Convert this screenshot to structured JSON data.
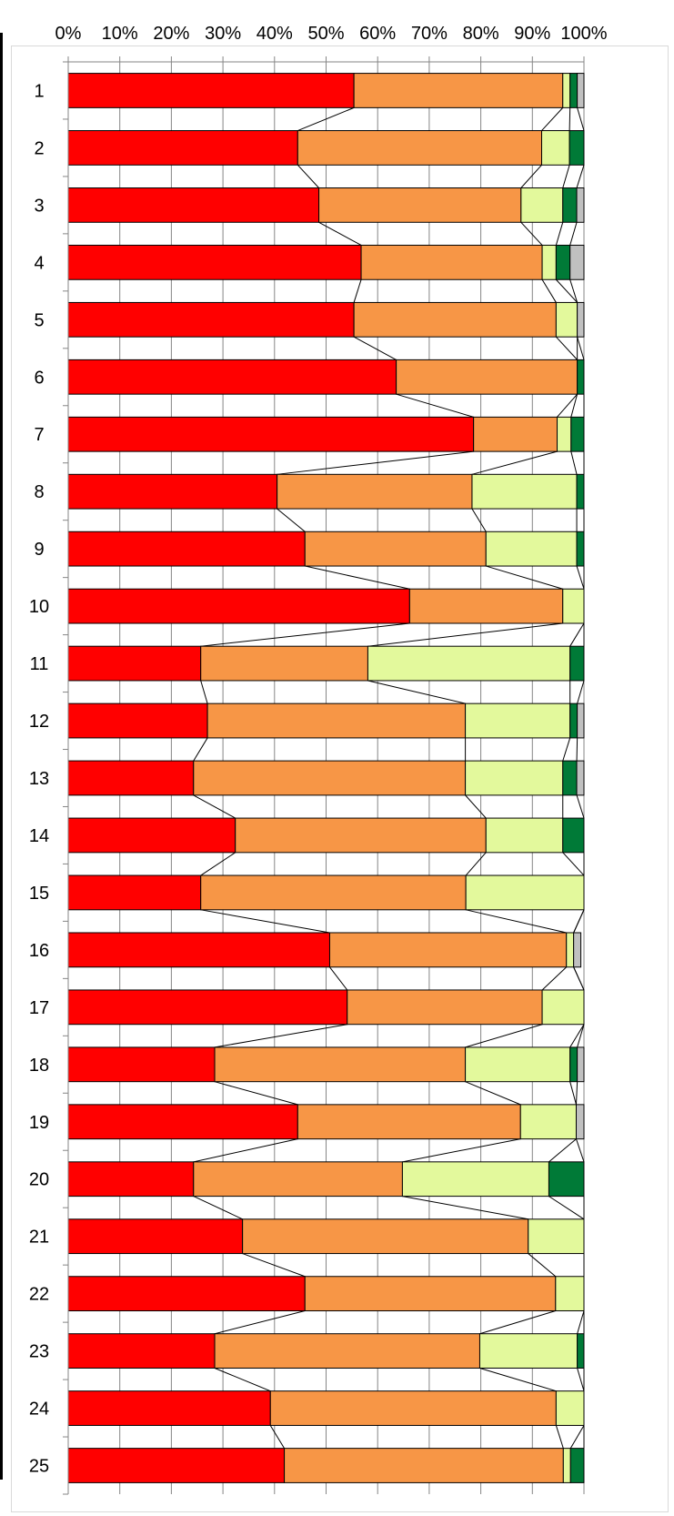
{
  "chart_data": {
    "type": "bar",
    "orientation": "horizontal",
    "stacked": "percent",
    "series_lines": true,
    "grid": true,
    "x_tick_labels": [
      "0%",
      "10%",
      "20%",
      "30%",
      "40%",
      "50%",
      "60%",
      "70%",
      "80%",
      "90%",
      "100%"
    ],
    "xlim": [
      0,
      100
    ],
    "categories": [
      "1",
      "2",
      "3",
      "4",
      "5",
      "6",
      "7",
      "8",
      "9",
      "10",
      "11",
      "12",
      "13",
      "14",
      "15",
      "16",
      "17",
      "18",
      "19",
      "20",
      "21",
      "22",
      "23",
      "24",
      "25"
    ],
    "series": [
      {
        "color": "#ff0000",
        "values": [
          55.4,
          44.5,
          48.6,
          56.8,
          55.4,
          63.6,
          78.6,
          40.5,
          45.9,
          66.2,
          25.7,
          27.0,
          24.3,
          32.4,
          25.7,
          50.7,
          54.1,
          28.4,
          44.5,
          24.3,
          33.8,
          45.9,
          28.4,
          39.2,
          41.9
        ]
      },
      {
        "color": "#f79646",
        "values": [
          40.5,
          47.3,
          39.2,
          35.1,
          39.2,
          35.1,
          16.2,
          37.8,
          35.1,
          29.7,
          32.4,
          50.0,
          52.7,
          48.6,
          51.4,
          45.9,
          37.8,
          48.6,
          43.2,
          40.5,
          55.4,
          48.6,
          51.4,
          55.4,
          54.1
        ]
      },
      {
        "color": "#e3f99c",
        "values": [
          1.4,
          5.4,
          8.1,
          2.7,
          4.1,
          0.0,
          2.7,
          20.3,
          17.6,
          4.1,
          39.2,
          20.3,
          18.9,
          14.9,
          22.9,
          1.4,
          8.1,
          20.3,
          10.8,
          28.4,
          10.8,
          5.5,
          18.9,
          5.4,
          1.4
        ]
      },
      {
        "color": "#007a37",
        "values": [
          1.4,
          2.8,
          2.7,
          2.7,
          0.0,
          1.3,
          2.5,
          1.4,
          1.4,
          0.0,
          2.7,
          1.4,
          2.7,
          4.1,
          0.0,
          0.0,
          0.0,
          1.4,
          0.0,
          6.8,
          0.0,
          0.0,
          1.3,
          0.0,
          2.6
        ]
      },
      {
        "color": "#c0c0c0",
        "values": [
          1.3,
          0.0,
          1.4,
          2.7,
          1.3,
          0.0,
          0.0,
          0.0,
          0.0,
          0.0,
          0.0,
          1.3,
          1.4,
          0.0,
          0.0,
          1.4,
          0.0,
          1.3,
          1.5,
          0.0,
          0.0,
          0.0,
          0.0,
          0.0,
          0.0
        ]
      }
    ]
  }
}
